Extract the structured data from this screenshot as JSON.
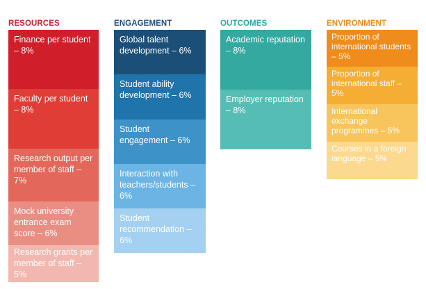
{
  "columns": [
    {
      "title": "RESOURCES",
      "title_color": "#c8242e",
      "items": [
        {
          "label": "Finance per student – 8%",
          "color": "#d11e2b"
        },
        {
          "label": "Faculty per student – 8%",
          "color": "#df3d36"
        },
        {
          "label": "Research output per member of staff – 7%",
          "color": "#e3685b"
        },
        {
          "label": "Mock university entrance exam score – 6%",
          "color": "#ea8e84"
        },
        {
          "label": "Research grants per member of staff – 5%",
          "color": "#f2b8b0"
        }
      ]
    },
    {
      "title": "ENGAGEMENT",
      "title_color": "#1b4f7c",
      "items": [
        {
          "label": "Global talent development – 6%",
          "color": "#1c4f78"
        },
        {
          "label": "Student ability development – 6%",
          "color": "#1e74ab"
        },
        {
          "label": "Student engagement – 6%",
          "color": "#3d92c8"
        },
        {
          "label": "Interaction with teachers/students – 6%",
          "color": "#6bb4e3"
        },
        {
          "label": "Student recommendation – 6%",
          "color": "#a4d1f1"
        }
      ]
    },
    {
      "title": "OUTCOMES",
      "title_color": "#27a99f",
      "items": [
        {
          "label": "Academic reputation – 8%",
          "color": "#33a9a0"
        },
        {
          "label": "Employer reputation – 8%",
          "color": "#56bdb4"
        }
      ]
    },
    {
      "title": "ENVIRONMENT",
      "title_color": "#ef8b1a",
      "items": [
        {
          "label": "Proportion of international students – 5%",
          "color": "#f08c1c"
        },
        {
          "label": "Proportion of international staff – 5%",
          "color": "#f5ad34"
        },
        {
          "label": "International exchange programmes – 5%",
          "color": "#f8c55c"
        },
        {
          "label": "Courses in a foreign language – 5%",
          "color": "#fbd98e"
        }
      ]
    }
  ]
}
